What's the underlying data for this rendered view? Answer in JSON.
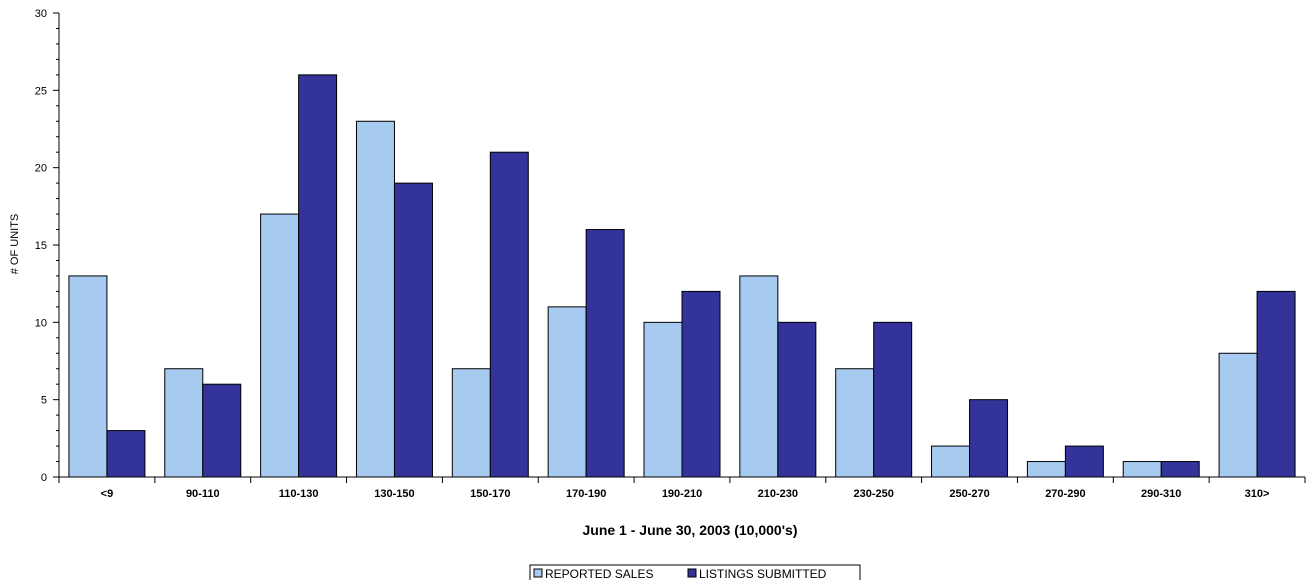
{
  "chart_data": {
    "type": "bar",
    "categories": [
      "<9",
      "90-110",
      "110-130",
      "130-150",
      "150-170",
      "170-190",
      "190-210",
      "210-230",
      "230-250",
      "250-270",
      "270-290",
      "290-310",
      "310>"
    ],
    "series": [
      {
        "name": "REPORTED SALES",
        "values": [
          13,
          7,
          17,
          23,
          7,
          11,
          10,
          13,
          7,
          2,
          1,
          1,
          8
        ]
      },
      {
        "name": "LISTINGS SUBMITTED",
        "values": [
          3,
          6,
          26,
          19,
          21,
          16,
          12,
          10,
          10,
          5,
          2,
          1,
          12
        ]
      }
    ],
    "title": "",
    "xlabel": "June 1 - June 30, 2003 (10,000's)",
    "ylabel": "# OF UNITS",
    "ylim": [
      0,
      30
    ],
    "yticks": [
      0,
      5,
      10,
      15,
      20,
      25,
      30
    ],
    "grid": false,
    "legend": "bottom-center",
    "colors": {
      "REPORTED SALES": "#a6caf0",
      "LISTINGS SUBMITTED": "#333399",
      "edge": "#000000"
    }
  }
}
